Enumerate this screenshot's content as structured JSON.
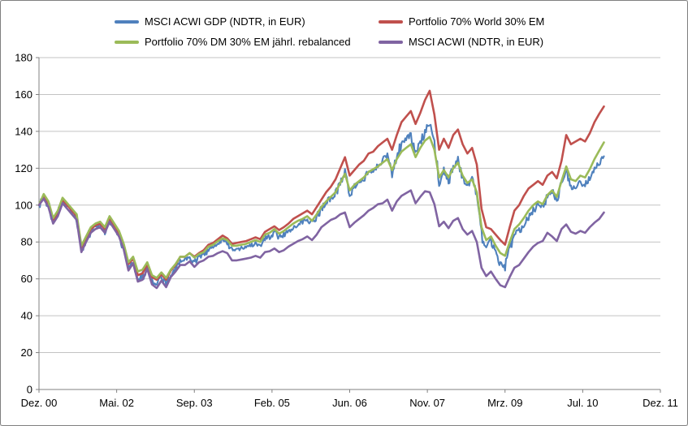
{
  "figure": {
    "background": "#ffffff",
    "border_color": "#7f7f7f"
  },
  "chart_data": {
    "type": "line",
    "title": "",
    "xlabel": "",
    "ylabel": "",
    "ylim": [
      0,
      180
    ],
    "y_ticks": [
      0,
      20,
      40,
      60,
      80,
      100,
      120,
      140,
      160,
      180
    ],
    "x_tick_labels": [
      "Dez. 00",
      "Mai. 02",
      "Sep. 03",
      "Feb. 05",
      "Jun. 06",
      "Nov. 07",
      "Mrz. 09",
      "Jul. 10",
      "Dez. 11"
    ],
    "x_axis_total_months": 132,
    "data_start_label": "Dez. 00",
    "data_cadence_months": 1,
    "grid": true,
    "legend_position": "top",
    "style": {
      "grid_color": "#c3c3c3",
      "axis_color": "#808080",
      "tick_label_color": "#000000",
      "noisy_series_jitter": 1.0
    },
    "series": [
      {
        "key": "msci-acwi-gdp",
        "name": "MSCI ACWI GDP (NDTR, in EUR)",
        "color": "#4F81BD",
        "line_style": "noisy",
        "values": [
          100,
          104,
          100,
          91,
          95,
          102,
          99,
          96,
          93,
          75,
          81,
          86,
          88,
          89,
          86,
          92,
          88,
          84,
          77,
          66,
          70,
          60,
          61,
          67,
          59,
          57.5,
          61,
          58,
          63,
          66,
          70,
          70,
          72,
          69,
          72,
          73,
          76,
          77,
          79,
          81,
          80,
          76,
          76,
          76.5,
          77,
          78,
          79,
          78,
          82,
          83,
          85,
          82.5,
          84,
          86,
          88,
          90,
          91,
          93,
          90,
          94,
          98,
          101,
          104,
          106,
          111,
          118,
          106,
          110,
          112,
          114,
          118,
          119,
          121,
          124,
          127,
          118,
          127,
          133,
          136,
          138,
          127,
          133,
          140,
          144,
          134,
          113,
          119,
          113,
          120,
          124,
          115,
          110,
          113,
          105,
          84,
          76,
          80,
          73,
          68,
          67,
          76,
          84,
          86,
          89,
          93,
          97,
          100,
          99,
          105,
          107,
          103,
          112,
          119,
          110,
          108.5,
          112,
          110.5,
          115,
          119.5,
          123,
          126.5
        ]
      },
      {
        "key": "portfolio-70-world-30-em",
        "name": "Portfolio 70% World 30% EM",
        "color": "#C0504D",
        "line_style": "smooth",
        "values": [
          100,
          105,
          101,
          92,
          96,
          103,
          100,
          97,
          94,
          77,
          82,
          87,
          89,
          90,
          87,
          93,
          89,
          85,
          78,
          68,
          71,
          62,
          63,
          68,
          61,
          59.5,
          62.5,
          59.5,
          64.5,
          67.5,
          72,
          72,
          74,
          72,
          74,
          75.5,
          78.5,
          79.5,
          81.5,
          83.5,
          82,
          79,
          79.5,
          80,
          80.5,
          81.5,
          82.5,
          81.5,
          85.5,
          87,
          88.5,
          86.5,
          88,
          90,
          92.5,
          94,
          95.5,
          97,
          95,
          99,
          103,
          107,
          110,
          114,
          120,
          126,
          116,
          119,
          122,
          124,
          128,
          129,
          132,
          134,
          136,
          130,
          138,
          145,
          148,
          151,
          144,
          150,
          157,
          162,
          149,
          130,
          136,
          131,
          138,
          141,
          133,
          128,
          131,
          122,
          98,
          88,
          87,
          84,
          81,
          78.5,
          88,
          97,
          100,
          105,
          109,
          111,
          113,
          111,
          116,
          118,
          114.5,
          124,
          138,
          133,
          134.5,
          136,
          134.5,
          139,
          145,
          149.5,
          153.5
        ]
      },
      {
        "key": "portfolio-70-dm-30-em-rebalanced",
        "name": "Portfolio 70% DM 30% EM jährl. rebalanced",
        "color": "#9BBB59",
        "line_style": "smooth",
        "values": [
          100,
          106,
          102,
          93,
          97,
          104,
          101,
          98,
          95,
          78,
          83,
          88,
          90,
          91,
          88,
          94,
          90,
          86,
          79,
          69,
          72,
          64,
          65,
          69,
          62,
          60.5,
          63.5,
          60.5,
          65,
          68,
          72,
          72,
          74,
          71.5,
          73.5,
          74.5,
          77.5,
          78.5,
          80.5,
          82,
          81,
          78,
          78,
          78.5,
          79,
          80,
          81,
          80,
          84,
          85,
          87,
          84.5,
          86,
          88,
          90,
          91.5,
          92.5,
          94,
          91.5,
          95,
          99,
          102,
          104.5,
          107,
          112,
          117,
          108,
          111,
          113,
          115,
          118,
          119.5,
          121,
          123,
          125,
          119,
          125,
          129,
          131,
          133,
          126,
          131,
          135,
          137,
          130,
          115,
          119,
          115,
          120,
          123,
          116,
          112,
          114,
          107,
          88,
          81,
          83,
          78,
          74,
          72.5,
          80,
          87,
          89.5,
          93,
          97,
          100,
          102,
          100.5,
          105.5,
          108,
          104.5,
          113,
          121,
          114,
          113,
          116,
          115,
          119.5,
          125,
          129.5,
          134
        ]
      },
      {
        "key": "msci-acwi",
        "name": "MSCI ACWI (NDTR, in EUR)",
        "color": "#8064A2",
        "line_style": "smooth",
        "values": [
          100,
          103.5,
          99,
          90,
          94,
          101,
          98,
          95,
          92,
          74.5,
          80,
          85,
          87,
          88,
          85,
          91,
          87,
          83,
          76,
          64.5,
          68.5,
          58.5,
          59.5,
          65.5,
          57,
          55,
          59,
          55.5,
          61,
          64,
          67.5,
          67.5,
          69.5,
          66.5,
          69,
          70,
          72,
          72.5,
          74,
          75,
          74,
          70,
          70,
          70.5,
          71,
          71.5,
          72.5,
          71.5,
          74.5,
          75,
          76.5,
          74.5,
          75.5,
          77.5,
          79,
          80.5,
          81.5,
          83,
          81,
          84,
          88,
          90,
          92,
          93,
          95,
          96,
          88,
          90.5,
          92.5,
          94.5,
          97,
          98.5,
          100.5,
          101,
          103,
          97,
          102,
          105,
          106.5,
          108,
          101,
          104.5,
          107.5,
          107,
          100.5,
          88.5,
          91,
          87.5,
          91.5,
          93,
          87,
          84,
          86,
          80,
          66,
          61.5,
          64,
          60,
          56.5,
          55.5,
          61,
          66,
          67.5,
          71,
          74.5,
          77.5,
          79.5,
          80.5,
          85,
          83,
          80.5,
          87,
          89.5,
          85.5,
          84.5,
          86,
          85,
          88,
          90.5,
          92.5,
          96
        ]
      }
    ]
  }
}
